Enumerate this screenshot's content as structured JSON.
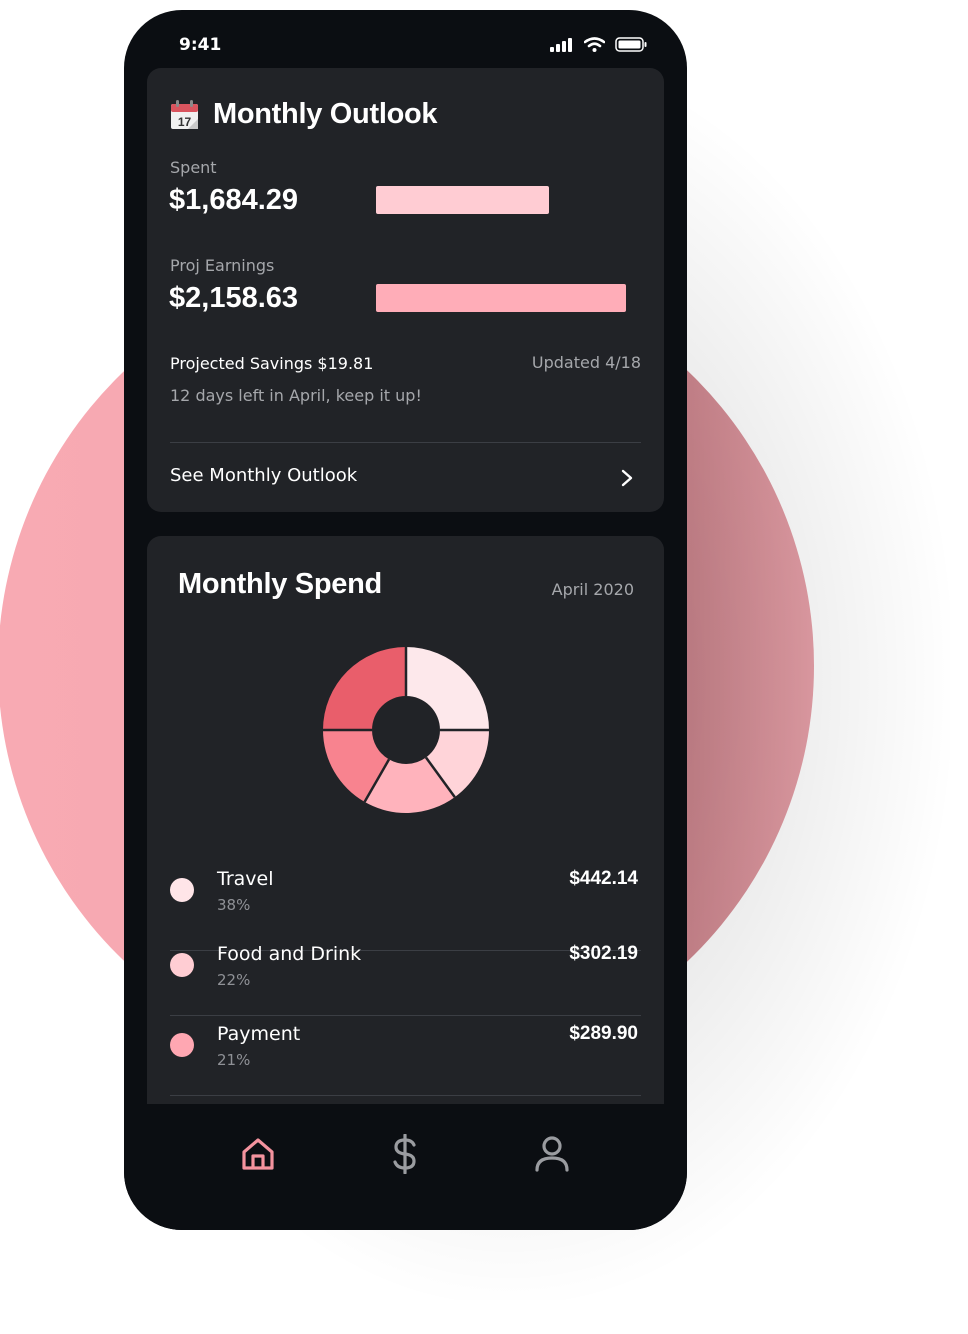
{
  "status_bar": {
    "time": "9:41",
    "icons": [
      "signal-icon",
      "wifi-icon",
      "battery-icon"
    ]
  },
  "outlook": {
    "icon": "calendar-icon",
    "calendar_day": "17",
    "title": "Monthly Outlook",
    "spent": {
      "label": "Spent",
      "value": "$1,684.29",
      "bar_color": "#ffccd3",
      "bar_fraction": 0.69
    },
    "earnings": {
      "label": "Proj Earnings",
      "value": "$2,158.63",
      "bar_color": "#ffadb8",
      "bar_fraction": 1.0
    },
    "savings": "Projected Savings $19.81",
    "updated": "Updated 4/18",
    "days_left": "12 days left in April, keep it up!",
    "link": "See Monthly Outlook"
  },
  "spend": {
    "title": "Monthly Spend",
    "month": "April 2020",
    "categories": [
      {
        "name": "Travel",
        "percent": "38%",
        "amount": "$442.14",
        "color": "#ffe5e8"
      },
      {
        "name": "Food and Drink",
        "percent": "22%",
        "amount": "$302.19",
        "color": "#ffcdd3"
      },
      {
        "name": "Payment",
        "percent": "21%",
        "amount": "$289.90",
        "color": "#ffa7b2"
      }
    ]
  },
  "chart_data": {
    "type": "pie",
    "donut_colors": [
      "#fde8eb",
      "#ffd4d9",
      "#ffb3bc",
      "#f8838f",
      "#e95e6b"
    ]
  },
  "tab_bar": {
    "tabs": [
      {
        "icon": "home-icon",
        "active": true
      },
      {
        "icon": "dollar-icon",
        "active": false
      },
      {
        "icon": "profile-icon",
        "active": false
      }
    ],
    "active_color": "#f4939e",
    "inactive_color": "#9a9ca0"
  },
  "colors": {
    "card_bg": "#212327",
    "phone_bg": "#0b0e12",
    "accent_circle": "#f8aab3"
  }
}
